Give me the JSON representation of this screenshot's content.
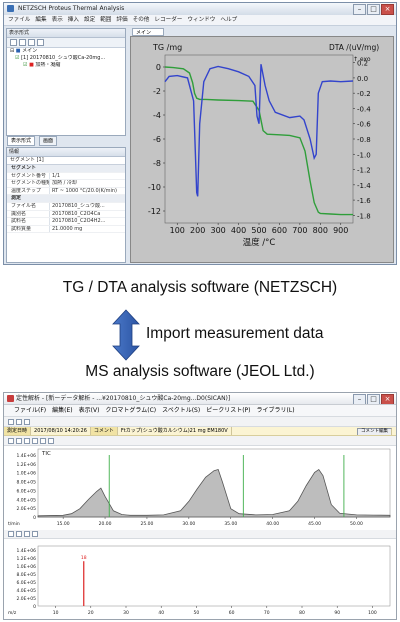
{
  "netzsch": {
    "title": "NETZSCH Proteus Thermal Analysis",
    "menu": [
      "ファイル",
      "編集",
      "表示",
      "挿入",
      "設定",
      "範囲",
      "評価",
      "その他",
      "レコーダー",
      "ウィンドウ",
      "ヘルプ"
    ],
    "left_panel": {
      "header": "表示形式",
      "tree_root": "メイン",
      "tree_file": "[1] 20170810_シュウ酸Ca-20mg...",
      "tree_child": "加熱・凝縮",
      "tabs": [
        "表示形式",
        "画面"
      ]
    },
    "props": {
      "header": "情報",
      "section_label": "セグメント [1]",
      "rows": [
        {
          "k": "セグメント",
          "v": "",
          "section": true
        },
        {
          "k": "セグメント番号",
          "v": "1/1"
        },
        {
          "k": "セグメントの種類",
          "v": "加熱 / 冷却"
        },
        {
          "k": "温度ステップ",
          "v": "RT ~ 1000 °C/20.0(K/min)"
        },
        {
          "k": "測定",
          "v": "",
          "section": true
        },
        {
          "k": "ファイル名",
          "v": "20170810_シュウ酸..."
        },
        {
          "k": "識別名",
          "v": "20170810_C2O4Ca"
        },
        {
          "k": "試料名",
          "v": "20170810_C2O4H2..."
        },
        {
          "k": "試料質量",
          "v": "21.0000 mg"
        }
      ]
    },
    "plot": {
      "tab_label": "メイン",
      "left_axis_title": "TG /mg",
      "right_axis_title": "DTA /(uV/mg)",
      "exo_label": "↑ exo",
      "x_axis_title": "温度 /°C",
      "x_ticks": [
        "100",
        "200",
        "300",
        "400",
        "500",
        "600",
        "700",
        "800",
        "900"
      ],
      "left_ticks": [
        "0",
        "-2",
        "-4",
        "-6",
        "-8",
        "-10",
        "-12"
      ],
      "right_ticks": [
        "0.2",
        "0.0",
        "-0.2",
        "-0.4",
        "-0.6",
        "-0.8",
        "-1.0",
        "-1.2",
        "-1.4",
        "-1.6",
        "-1.8"
      ]
    }
  },
  "captions": {
    "top": "TG / DTA analysis software (NETZSCH)",
    "middle": "Import measurement data",
    "bottom": "MS analysis software (JEOL Ltd.)"
  },
  "jeol": {
    "title": "定性解析 - [新ーデータ解析 - ...¥20170810_シュウ酸Ca-20mg...D0(SICAN)]",
    "menu": [
      "ファイル(F)",
      "編集(E)",
      "表示(V)",
      "クロマトグラム(C)",
      "スペクトル(S)",
      "ピークリスト(P)",
      "ライブラリ(L)"
    ],
    "info": {
      "date_label": "測定日時",
      "date_value": "2017/08/10 14:20:26",
      "comment_label": "コメント",
      "comment_value": "Ftカップ(シュウ酸カルシウム)21 mg EM180V",
      "comment_button": "コメント編集"
    },
    "tic_label": "TIC",
    "chrom_y_ticks": [
      "1.4E+06",
      "1.2E+06",
      "1.0E+06",
      "8.0E+05",
      "6.0E+05",
      "4.0E+05",
      "2.0E+05",
      "0"
    ],
    "chrom_x_ticks": [
      "15.00",
      "20.00",
      "25.00",
      "30.00",
      "35.00",
      "40.00",
      "45.00",
      "50.00"
    ],
    "chrom_x_unit": "t/min",
    "spec_y_ticks": [
      "1.4E+06",
      "1.2E+06",
      "1.0E+06",
      "8.0E+05",
      "6.0E+05",
      "4.0E+05",
      "2.0E+05",
      "0"
    ],
    "spec_x_ticks": [
      "10",
      "20",
      "30",
      "40",
      "50",
      "60",
      "70",
      "80",
      "90",
      "100"
    ],
    "spec_x_unit": "m/z",
    "spec_peak_label": "18"
  },
  "chart_data": [
    {
      "type": "line",
      "title": "",
      "xlabel": "温度 /°C",
      "ylabel": "TG /mg",
      "y2label": "DTA /(uV/mg)",
      "xlim": [
        40,
        960
      ],
      "ylim": [
        -13,
        1
      ],
      "y2lim": [
        -1.9,
        0.3
      ],
      "legend": "none",
      "series": [
        {
          "axis": "left",
          "color": "#2f9e3a",
          "x": [
            40,
            80,
            130,
            160,
            175,
            185,
            195,
            210,
            240,
            300,
            400,
            470,
            500,
            520,
            540,
            600,
            650,
            700,
            725,
            750,
            770,
            790,
            800,
            850,
            900,
            960
          ],
          "y": [
            0,
            -0.05,
            -0.15,
            -0.5,
            -1.3,
            -2.2,
            -2.6,
            -2.7,
            -2.7,
            -2.75,
            -2.8,
            -2.85,
            -3.6,
            -5.3,
            -5.6,
            -5.65,
            -5.7,
            -5.9,
            -7.0,
            -9.5,
            -11.3,
            -12.1,
            -12.2,
            -12.25,
            -12.3,
            -12.3
          ]
        },
        {
          "axis": "right",
          "color": "#3344cc",
          "x": [
            40,
            60,
            100,
            150,
            180,
            195,
            200,
            210,
            230,
            260,
            300,
            350,
            400,
            450,
            480,
            490,
            500,
            510,
            530,
            550,
            580,
            650,
            700,
            720,
            750,
            770,
            780,
            790,
            810,
            850,
            900,
            960
          ],
          "y": [
            -0.05,
            0.02,
            0.03,
            0.0,
            -0.3,
            -1.5,
            -1.55,
            -0.6,
            -0.05,
            0.12,
            0.15,
            0.12,
            0.08,
            0.02,
            -0.1,
            -0.5,
            -0.6,
            0.18,
            -0.1,
            -0.3,
            -0.45,
            -0.52,
            -0.5,
            -0.55,
            -0.8,
            -1.05,
            -1.0,
            -0.2,
            -0.05,
            -0.04,
            -0.05,
            -0.04
          ]
        }
      ]
    },
    {
      "type": "area",
      "title": "",
      "label": "TIC",
      "xlabel": "t/min",
      "xlim": [
        12,
        54
      ],
      "ylim": [
        0,
        1500000
      ],
      "series": [
        {
          "name": "TIC",
          "x": [
            12,
            15,
            16,
            17,
            18,
            19,
            19.5,
            20,
            21,
            22,
            23,
            25,
            27,
            29,
            30,
            31,
            32,
            33,
            33.5,
            34,
            35,
            36,
            38,
            40,
            42,
            43,
            44,
            45,
            45.5,
            46,
            47,
            48,
            50,
            52,
            54
          ],
          "y": [
            30000,
            40000,
            80000,
            200000,
            420000,
            620000,
            700000,
            500000,
            150000,
            60000,
            40000,
            40000,
            50000,
            150000,
            380000,
            680000,
            960000,
            1120000,
            1150000,
            850000,
            200000,
            80000,
            50000,
            60000,
            150000,
            380000,
            760000,
            1080000,
            1150000,
            1000000,
            300000,
            90000,
            50000,
            45000,
            40000
          ]
        }
      ]
    },
    {
      "type": "bar",
      "title": "",
      "xlabel": "m/z",
      "xlim": [
        5,
        105
      ],
      "ylim": [
        0,
        1500000
      ],
      "x": [
        18
      ],
      "values": [
        1200000
      ]
    }
  ]
}
